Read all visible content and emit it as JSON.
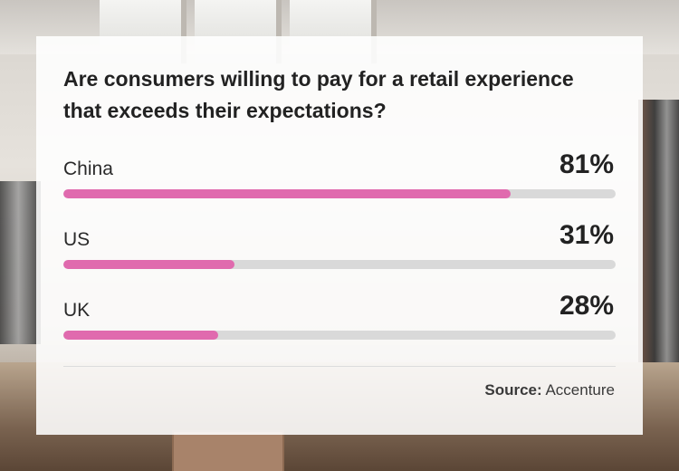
{
  "card": {
    "title": "Are consumers willing to pay for a retail experience that exceeds their expectations?",
    "source_label": "Source:",
    "source_value": "Accenture"
  },
  "colors": {
    "bar_fill": "#e06aae",
    "bar_track": "#d9d9d9"
  },
  "chart_data": {
    "type": "bar",
    "orientation": "horizontal",
    "title": "Are consumers willing to pay for a retail experience that exceeds their expectations?",
    "categories": [
      "China",
      "US",
      "UK"
    ],
    "values": [
      81,
      31,
      28
    ],
    "value_labels": [
      "81%",
      "31%",
      "28%"
    ],
    "xlim": [
      0,
      100
    ],
    "grid": false,
    "legend": "none"
  }
}
